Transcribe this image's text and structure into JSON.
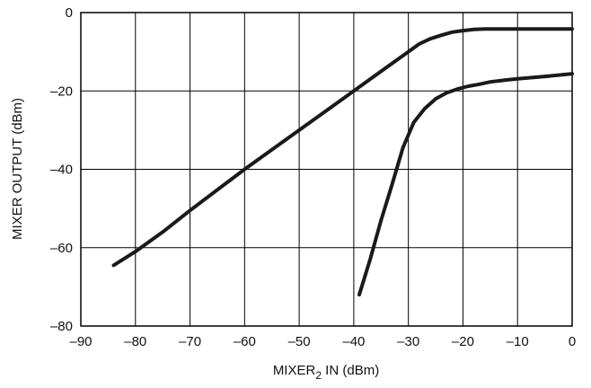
{
  "chart_data": {
    "type": "line",
    "xlabel_main": "MIXER",
    "xlabel_sub": "2",
    "xlabel_tail": " IN (dBm)",
    "ylabel": "MIXER OUTPUT (dBm)",
    "xlim": [
      -90,
      0
    ],
    "ylim": [
      -80,
      0
    ],
    "xticks": [
      -90,
      -80,
      -70,
      -60,
      -50,
      -40,
      -30,
      -20,
      -10,
      0
    ],
    "yticks": [
      -80,
      -60,
      -40,
      -20,
      0
    ],
    "xtick_labels": [
      "–90",
      "–80",
      "–70",
      "–60",
      "–50",
      "–40",
      "–30",
      "–20",
      "–10",
      "0"
    ],
    "ytick_labels": [
      "–80",
      "–60",
      "–40",
      "–20",
      "0"
    ],
    "grid": true,
    "series": [
      {
        "x": [
          -84,
          -80,
          -75,
          -70,
          -60,
          -50,
          -40,
          -35,
          -30,
          -28,
          -26,
          -24,
          -22,
          -20,
          -18,
          -16,
          -10,
          -5,
          0
        ],
        "y": [
          -64.5,
          -61,
          -56,
          -50.5,
          -40,
          -30,
          -20,
          -15,
          -10,
          -8,
          -6.7,
          -5.8,
          -5,
          -4.6,
          -4.3,
          -4.2,
          -4.2,
          -4.2,
          -4.2
        ]
      },
      {
        "x": [
          -39,
          -37,
          -35,
          -33,
          -31,
          -29,
          -27,
          -25,
          -23,
          -21,
          -19,
          -17,
          -15,
          -12,
          -10,
          -5,
          0
        ],
        "y": [
          -72,
          -63,
          -53,
          -44,
          -34.5,
          -28,
          -24.5,
          -22,
          -20.5,
          -19.5,
          -18.8,
          -18.3,
          -17.7,
          -17.2,
          -16.9,
          -16.3,
          -15.6
        ]
      }
    ]
  }
}
